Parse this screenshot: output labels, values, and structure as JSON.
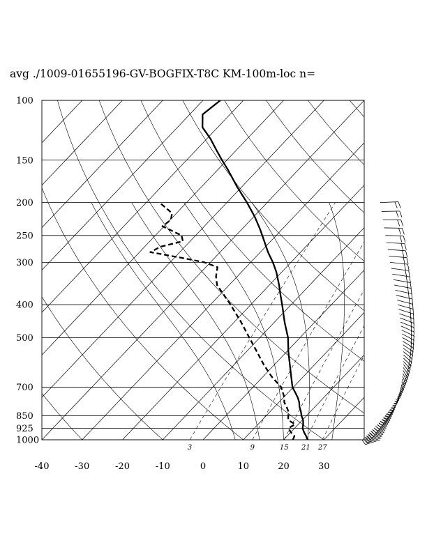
{
  "title": "avg ./1009-01655196-GV-BOGFIX-T8C KM-100m-loc n=",
  "chart_data": {
    "type": "skew-t log-p sounding diagram",
    "title": "avg ./1009-01655196-GV-BOGFIX-T8C KM-100m-loc n=",
    "pressure_levels": [
      100,
      150,
      200,
      250,
      300,
      400,
      500,
      700,
      850,
      925,
      1000
    ],
    "pressure_tick_labels": [
      "100",
      "150",
      "200",
      "250",
      "300",
      "400",
      "500",
      "700",
      "850",
      "925",
      "1000"
    ],
    "temperature_ticks": [
      -40,
      -30,
      -20,
      -10,
      0,
      10,
      20,
      30
    ],
    "temperature_tick_labels": [
      "-40",
      "-30",
      "-20",
      "-10",
      "0",
      "10",
      "20",
      "30"
    ],
    "mixing_ratio_labels": [
      "3",
      "9",
      "15",
      "21",
      "27"
    ],
    "mixing_ratios": [
      3,
      9,
      15,
      21,
      27
    ],
    "pressure_range": [
      1000,
      100
    ],
    "temperature_range_at_base": [
      -40,
      40
    ],
    "log_pressure_axis": true,
    "isotherms_skewed": true,
    "series": [
      {
        "style": "solid",
        "pressure": [
          1000,
          975,
          950,
          925,
          900,
          875,
          850,
          825,
          800,
          775,
          750,
          725,
          700,
          650,
          600,
          550,
          500,
          450,
          400,
          370,
          350,
          320,
          300,
          280,
          260,
          240,
          220,
          200,
          180,
          160,
          150,
          140,
          130,
          120,
          110,
          100
        ],
        "temperature": [
          26.0,
          24.7,
          23.3,
          22.0,
          21.2,
          20.2,
          18.8,
          17.6,
          16.2,
          15.0,
          13.5,
          11.7,
          9.8,
          6.9,
          3.8,
          0.4,
          -3.0,
          -7.5,
          -12.2,
          -15.4,
          -17.6,
          -21.4,
          -24.5,
          -28.1,
          -31.6,
          -35.4,
          -39.8,
          -45.0,
          -51.1,
          -57.5,
          -61.2,
          -65.0,
          -69.0,
          -73.8,
          -76.8,
          -75.7
        ]
      },
      {
        "style": "dashed",
        "pressure": [
          1000,
          975,
          950,
          925,
          900,
          875,
          850,
          825,
          800,
          775,
          750,
          700,
          650,
          600,
          550,
          500,
          450,
          400,
          350,
          330,
          310,
          300,
          290,
          280,
          270,
          260,
          250,
          240,
          235,
          225,
          215,
          200
        ],
        "temperature": [
          22.3,
          21.8,
          20.0,
          18.5,
          19.2,
          16.5,
          15.5,
          14.5,
          13.0,
          11.3,
          10.2,
          7.0,
          2.0,
          -2.7,
          -7.4,
          -12.6,
          -18.3,
          -25.0,
          -33.0,
          -35.3,
          -37.1,
          -41.5,
          -49.0,
          -57.3,
          -56.1,
          -51.8,
          -53.5,
          -58.0,
          -60.4,
          -59.8,
          -61.1,
          -66.7
        ]
      }
    ],
    "wind_barbs": {
      "count": 65,
      "pressure_range": [
        1000,
        200
      ],
      "panel": "right of diagram"
    }
  }
}
